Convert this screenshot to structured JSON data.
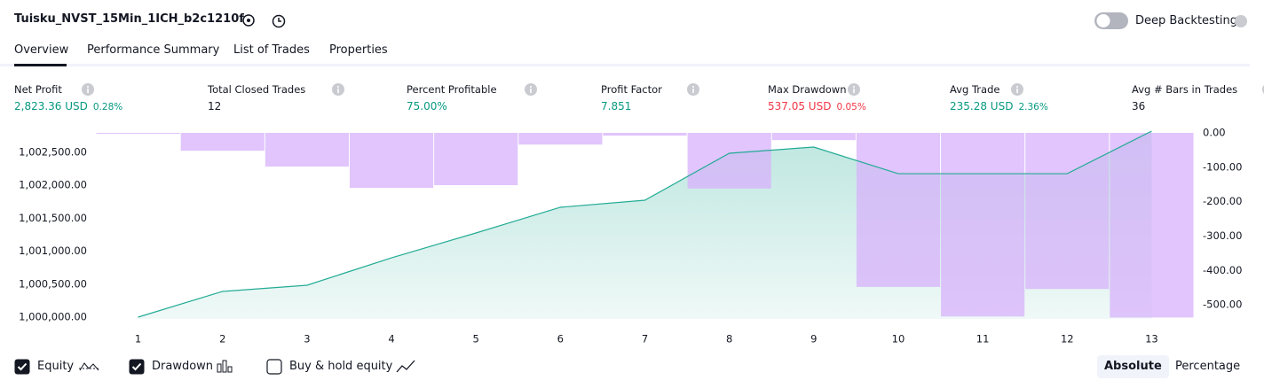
{
  "header": {
    "title": "Tuisku_NVST_15Min_1ICH_b2c1210f",
    "deep_backtesting": "Deep Backtesting"
  },
  "tabs": [
    "Overview",
    "Performance Summary",
    "List of Trades",
    "Properties"
  ],
  "metrics": [
    {
      "label": "Net Profit",
      "value": "2,823.36 USD",
      "percent": "0.28%",
      "color": "#089981"
    },
    {
      "label": "Total Closed Trades",
      "value": "12",
      "color": "#131722"
    },
    {
      "label": "Percent Profitable",
      "value": "75.00%",
      "color": "#089981"
    },
    {
      "label": "Profit Factor",
      "value": "7.851",
      "color": "#089981"
    },
    {
      "label": "Max Drawdown",
      "value": "537.05 USD",
      "percent": "0.05%",
      "color": "#f23645"
    },
    {
      "label": "Avg Trade",
      "value": "235.28 USD",
      "percent": "2.36%",
      "color": "#089981"
    },
    {
      "label": "Avg # Bars in Trades",
      "value": "36",
      "color": "#131722"
    }
  ],
  "chart_data": {
    "type": "bar-line",
    "categories": [
      "1",
      "2",
      "3",
      "4",
      "5",
      "6",
      "7",
      "8",
      "9",
      "10",
      "11",
      "12",
      "13"
    ],
    "series": [
      {
        "name": "Equity",
        "type": "line",
        "color": "#22ab94",
        "values": [
          1000000,
          1000390,
          1000484,
          1000900,
          1001277,
          1001667,
          1001774,
          1002487,
          1002581,
          1002177,
          1002177,
          1002177,
          1002823
        ]
      },
      {
        "name": "Drawdown",
        "type": "bar",
        "axis": "y2",
        "color": "#d7b2fb",
        "values": [
          -1,
          -52,
          -98,
          -160,
          -152,
          -34,
          -8,
          -162,
          -21,
          -448,
          -534,
          -454,
          -537
        ]
      }
    ],
    "ylim": [
      999973,
      1002796
    ],
    "yticks": [
      {
        "value": 1000000,
        "label": "1,000,000.00"
      },
      {
        "value": 1000500,
        "label": "1,000,500.00"
      },
      {
        "value": 1001000,
        "label": "1,001,000.00"
      },
      {
        "value": 1001500,
        "label": "1,001,500.00"
      },
      {
        "value": 1002000,
        "label": "1,002,000.00"
      },
      {
        "value": 1002500,
        "label": "1,002,500.00"
      }
    ],
    "y2lim": [
      -541,
      0
    ],
    "y2ticks": [
      {
        "value": 0,
        "label": "0.00"
      },
      {
        "value": -100,
        "label": "-100.00"
      },
      {
        "value": -200,
        "label": "-200.00"
      },
      {
        "value": -300,
        "label": "-300.00"
      },
      {
        "value": -400,
        "label": "-400.00"
      },
      {
        "value": -500,
        "label": "-500.00"
      }
    ]
  },
  "footer": {
    "buy_hold": "Buy & hold equity",
    "absolute": "Absolute",
    "percentage": "Percentage"
  }
}
